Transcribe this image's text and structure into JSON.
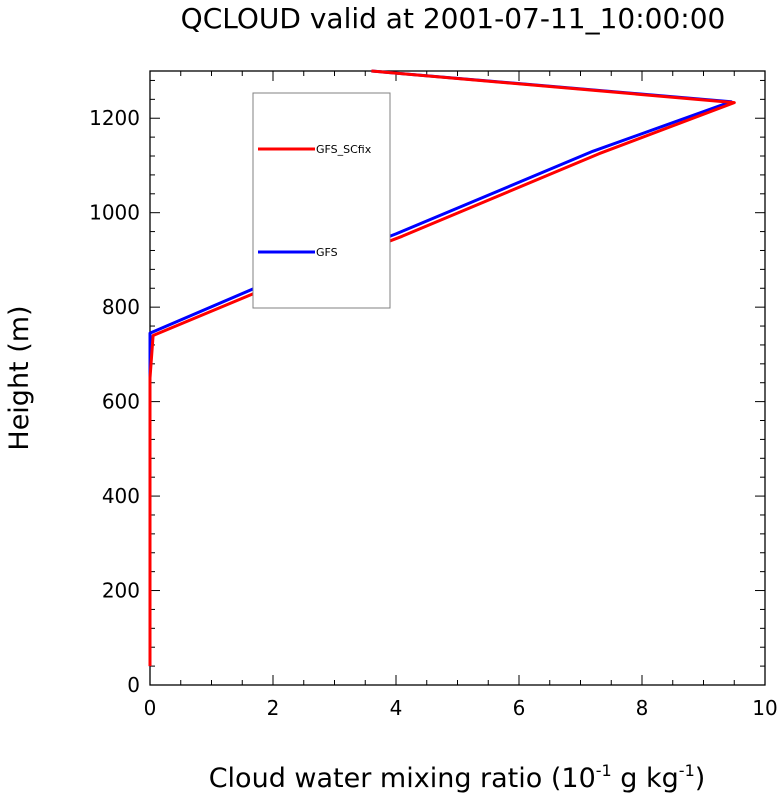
{
  "chart_data": {
    "type": "line",
    "title": "QCLOUD valid at 2001-07-11_10:00:00",
    "xlabel": {
      "base": "Cloud water mixing ratio (10",
      "exp1": "-1",
      "mid": " g kg",
      "exp2": "-1",
      "end": ")"
    },
    "ylabel": "Height (m)",
    "xlim": [
      0,
      10
    ],
    "ylim": [
      0,
      1300
    ],
    "x_ticks": [
      0,
      2,
      4,
      6,
      8,
      10
    ],
    "y_ticks": [
      0,
      200,
      400,
      600,
      800,
      1000,
      1200
    ],
    "x_tick_labels": [
      "0",
      "2",
      "4",
      "6",
      "8",
      "10"
    ],
    "y_tick_labels": [
      "0",
      "200",
      "400",
      "600",
      "800",
      "1000",
      "1200"
    ],
    "legend_position": "upper-left",
    "series": [
      {
        "name": "GFS",
        "color": "#0000ff",
        "points": [
          [
            0.0,
            40
          ],
          [
            0.0,
            100
          ],
          [
            0.0,
            300
          ],
          [
            0.0,
            500
          ],
          [
            0.0,
            650
          ],
          [
            0.0,
            700
          ],
          [
            0.0,
            745
          ],
          [
            1.7,
            840
          ],
          [
            4.0,
            955
          ],
          [
            7.2,
            1130
          ],
          [
            9.45,
            1235
          ],
          [
            3.6,
            1300
          ]
        ]
      },
      {
        "name": "GFS_SCfix",
        "color": "#ff0000",
        "points": [
          [
            0.0,
            40
          ],
          [
            0.0,
            100
          ],
          [
            0.0,
            300
          ],
          [
            0.0,
            500
          ],
          [
            0.0,
            650
          ],
          [
            0.05,
            740
          ],
          [
            1.8,
            835
          ],
          [
            4.1,
            950
          ],
          [
            7.3,
            1125
          ],
          [
            9.5,
            1233
          ],
          [
            3.6,
            1300
          ]
        ]
      }
    ]
  }
}
